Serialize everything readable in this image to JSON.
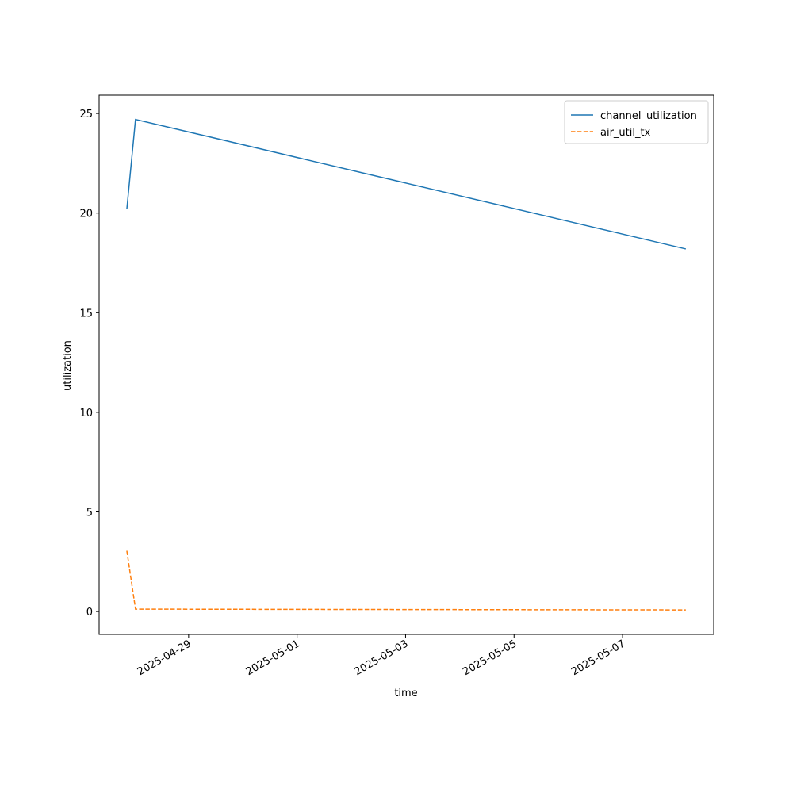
{
  "chart_data": {
    "type": "line",
    "x_label": "time",
    "y_label": "utilization",
    "x": [
      "2025-04-27T20:40",
      "2025-04-28T00:30",
      "2025-05-08T04:00"
    ],
    "series": [
      {
        "name": "channel_utilization",
        "color": "#1f77b4",
        "linestyle": "solid",
        "values": [
          20.2,
          24.7,
          18.2
        ]
      },
      {
        "name": "air_util_tx",
        "color": "#ff7f0e",
        "linestyle": "dashed",
        "values": [
          3.05,
          0.12,
          0.08
        ]
      }
    ],
    "xlim": [
      "2025-04-27T08:24",
      "2025-05-08T16:20"
    ],
    "xticks": [
      "2025-04-29",
      "2025-05-01",
      "2025-05-03",
      "2025-05-05",
      "2025-05-07"
    ],
    "ylim": [
      -1.15,
      25.92
    ],
    "yticks": [
      0,
      5,
      10,
      15,
      20,
      25
    ],
    "legend": "upper right"
  }
}
